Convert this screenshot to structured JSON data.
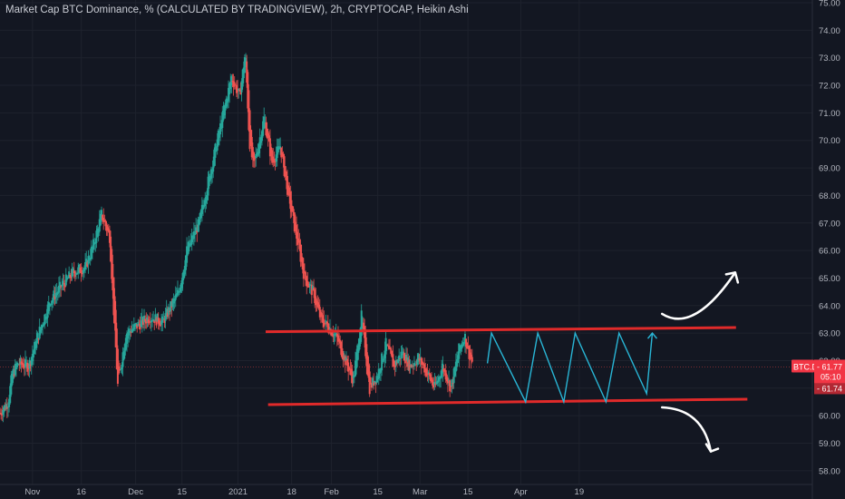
{
  "chart_title": "Market Cap BTC Dominance, % (CALCULATED BY TRADINGVIEW), 2h, CRYPTOCAP, Heikin Ashi",
  "price_tag": {
    "symbol": "BTC.D",
    "value": "61.77",
    "countdown": "05:10",
    "low_value": "61.74"
  },
  "colors": {
    "background": "#131722",
    "grid": "#1e222d",
    "up_candle": "#26a69a",
    "down_candle": "#ef5350",
    "range_line": "#e02a2a",
    "projection": "#29b6d6",
    "arrow": "#ffffff",
    "price_tag": "#f23645"
  },
  "chart_data": {
    "type": "candlestick",
    "title": "Market Cap BTC Dominance, % (CALCULATED BY TRADINGVIEW), 2h, CRYPTOCAP, Heikin Ashi",
    "ylabel": "",
    "ylim": [
      57.5,
      75.1
    ],
    "y_ticks": [
      58,
      59,
      60,
      61,
      62,
      63,
      64,
      65,
      66,
      67,
      68,
      69,
      70,
      71,
      72,
      73,
      74,
      75
    ],
    "x_ticks": [
      {
        "label": "Nov",
        "pos": 0.4
      },
      {
        "label": "16",
        "pos": 1.0
      },
      {
        "label": "Dec",
        "pos": 1.67
      },
      {
        "label": "15",
        "pos": 2.24
      },
      {
        "label": "2021",
        "pos": 2.93
      },
      {
        "label": "18",
        "pos": 3.59
      },
      {
        "label": "Feb",
        "pos": 4.08
      },
      {
        "label": "15",
        "pos": 4.65
      },
      {
        "label": "Mar",
        "pos": 5.17
      },
      {
        "label": "15",
        "pos": 5.76
      },
      {
        "label": "Apr",
        "pos": 6.41
      },
      {
        "label": "19",
        "pos": 7.13
      }
    ],
    "x_range": [
      0,
      10
    ],
    "price_path": [
      [
        0.0,
        60.1
      ],
      [
        0.1,
        60.5
      ],
      [
        0.15,
        61.5
      ],
      [
        0.22,
        61.9
      ],
      [
        0.35,
        61.8
      ],
      [
        0.5,
        63.2
      ],
      [
        0.62,
        64.2
      ],
      [
        0.78,
        64.8
      ],
      [
        0.9,
        65.2
      ],
      [
        1.05,
        65.4
      ],
      [
        1.15,
        66.2
      ],
      [
        1.25,
        67.3
      ],
      [
        1.35,
        66.5
      ],
      [
        1.45,
        61.1
      ],
      [
        1.55,
        63.0
      ],
      [
        1.7,
        63.3
      ],
      [
        1.85,
        63.6
      ],
      [
        2.0,
        63.4
      ],
      [
        2.2,
        64.5
      ],
      [
        2.3,
        66.0
      ],
      [
        2.45,
        67.0
      ],
      [
        2.6,
        69.0
      ],
      [
        2.75,
        71.0
      ],
      [
        2.85,
        72.3
      ],
      [
        2.95,
        71.6
      ],
      [
        3.02,
        73.2
      ],
      [
        3.07,
        70.0
      ],
      [
        3.12,
        69.0
      ],
      [
        3.25,
        70.8
      ],
      [
        3.35,
        69.2
      ],
      [
        3.45,
        69.8
      ],
      [
        3.55,
        68.0
      ],
      [
        3.65,
        66.5
      ],
      [
        3.75,
        65.0
      ],
      [
        3.85,
        64.5
      ],
      [
        3.95,
        63.5
      ],
      [
        4.05,
        63.2
      ],
      [
        4.15,
        62.8
      ],
      [
        4.25,
        62.0
      ],
      [
        4.35,
        61.3
      ],
      [
        4.45,
        63.6
      ],
      [
        4.55,
        61.0
      ],
      [
        4.65,
        61.5
      ],
      [
        4.75,
        62.6
      ],
      [
        4.85,
        61.8
      ],
      [
        4.95,
        62.3
      ],
      [
        5.05,
        61.8
      ],
      [
        5.15,
        62.1
      ],
      [
        5.25,
        61.6
      ],
      [
        5.35,
        61.0
      ],
      [
        5.45,
        61.8
      ],
      [
        5.55,
        61.0
      ],
      [
        5.65,
        62.4
      ],
      [
        5.72,
        62.9
      ],
      [
        5.78,
        62.2
      ],
      [
        5.82,
        61.9
      ]
    ],
    "annotations": {
      "resistance_line": {
        "x": [
          3.27,
          9.06
        ],
        "y": [
          63.05,
          63.2
        ]
      },
      "support_line": {
        "x": [
          3.3,
          9.2
        ],
        "y": [
          60.4,
          60.6
        ]
      },
      "projection_zigzag": [
        [
          6.0,
          61.9
        ],
        [
          6.05,
          63.0
        ],
        [
          6.47,
          60.5
        ],
        [
          6.62,
          63.0
        ],
        [
          6.94,
          60.5
        ],
        [
          7.08,
          63.0
        ],
        [
          7.46,
          60.5
        ],
        [
          7.62,
          63.0
        ],
        [
          7.96,
          60.8
        ],
        [
          8.03,
          63.0
        ]
      ],
      "breakout_up": {
        "from": [
          8.15,
          63.7
        ],
        "to": [
          9.05,
          65.2
        ]
      },
      "breakdown_down": {
        "from": [
          8.15,
          60.3
        ],
        "to": [
          8.75,
          58.7
        ]
      }
    },
    "last_price": 61.77,
    "grid": true
  }
}
